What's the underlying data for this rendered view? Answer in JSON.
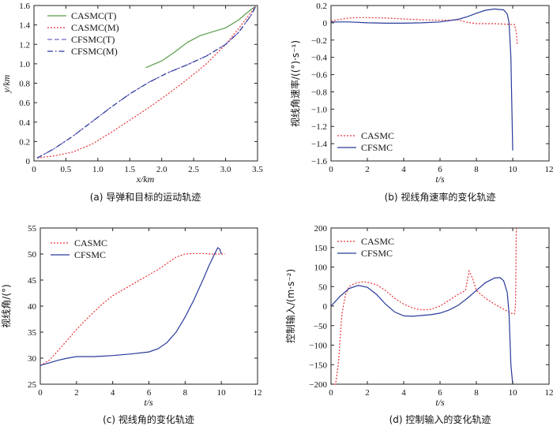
{
  "colors": {
    "green": "#5a9e4a",
    "red": "#e8333a",
    "purple": "#7c6cc8",
    "blue": "#2a3a9a"
  },
  "chart_data": [
    {
      "id": "a",
      "type": "line",
      "caption": "(a) 导弹和目标的运动轨迹",
      "xlabel": "x/km",
      "ylabel": "y/km",
      "xlim": [
        0,
        3.5
      ],
      "ylim": [
        0,
        1.6
      ],
      "xticks": [
        0,
        0.5,
        1.0,
        1.5,
        2.0,
        2.5,
        3.0,
        3.5
      ],
      "xtick_labels": [
        "0",
        "0.5",
        "1.0",
        "1.5",
        "2.0",
        "2.5",
        "3.0",
        "3.5"
      ],
      "yticks": [
        0,
        0.2,
        0.4,
        0.6,
        0.8,
        1.0,
        1.2,
        1.4,
        1.6
      ],
      "ytick_labels": [
        "0",
        "0.2",
        "0.4",
        "0.6",
        "0.8",
        "1.0",
        "1.2",
        "1.4",
        "1.6"
      ],
      "legend": "top-left",
      "series": [
        {
          "name": "CASMC(T)",
          "style": "solid",
          "color": "#5a9e4a",
          "x": [
            1.75,
            2.0,
            2.2,
            2.4,
            2.6,
            2.8,
            3.0,
            3.2,
            3.4,
            3.47
          ],
          "y": [
            0.96,
            1.03,
            1.12,
            1.22,
            1.29,
            1.33,
            1.37,
            1.45,
            1.56,
            1.59
          ]
        },
        {
          "name": "CASMC(M)",
          "style": "dotted",
          "color": "#e8333a",
          "x": [
            0.05,
            0.3,
            0.6,
            0.9,
            1.2,
            1.5,
            1.8,
            2.1,
            2.4,
            2.7,
            3.0,
            3.2,
            3.4,
            3.47
          ],
          "y": [
            0.03,
            0.05,
            0.09,
            0.17,
            0.29,
            0.42,
            0.55,
            0.69,
            0.84,
            1.0,
            1.2,
            1.36,
            1.53,
            1.59
          ]
        },
        {
          "name": "CFSMC(T)",
          "style": "dashed",
          "color": "#7c6cc8",
          "x": [
            0.05,
            0.3,
            0.6,
            0.9,
            1.2,
            1.5,
            1.8,
            2.1,
            2.4,
            2.7,
            3.0,
            3.2,
            3.4,
            3.47
          ],
          "y": [
            0.03,
            0.12,
            0.25,
            0.4,
            0.55,
            0.69,
            0.81,
            0.91,
            0.99,
            1.08,
            1.2,
            1.32,
            1.5,
            1.59
          ]
        },
        {
          "name": "CFSMC(M)",
          "style": "dashdot",
          "color": "#2a3a9a",
          "x": [
            0.05,
            0.3,
            0.6,
            0.9,
            1.2,
            1.5,
            1.8,
            2.1,
            2.4,
            2.7,
            3.0,
            3.2,
            3.4,
            3.47
          ],
          "y": [
            0.03,
            0.12,
            0.25,
            0.4,
            0.55,
            0.69,
            0.81,
            0.91,
            0.99,
            1.08,
            1.2,
            1.32,
            1.5,
            1.59
          ]
        }
      ]
    },
    {
      "id": "b",
      "type": "line",
      "caption": "(b) 视线角速率的变化轨迹",
      "xlabel": "t/s",
      "ylabel": "视线角速率/((°)·s⁻¹)",
      "xlim": [
        0,
        12
      ],
      "ylim": [
        -1.6,
        0.2
      ],
      "xticks": [
        0,
        2,
        4,
        6,
        8,
        10,
        12
      ],
      "xtick_labels": [
        "0",
        "2",
        "4",
        "6",
        "8",
        "10",
        "12"
      ],
      "yticks": [
        0.2,
        0,
        -0.2,
        -0.4,
        -0.6,
        -0.8,
        -1.0,
        -1.2,
        -1.4,
        -1.6
      ],
      "ytick_labels": [
        "0.2",
        "0",
        "−0.2",
        "−0.4",
        "−0.6",
        "−0.8",
        "−1.0",
        "−1.2",
        "−1.4",
        "−1.6"
      ],
      "legend": "bottom-left",
      "series": [
        {
          "name": "CASMC",
          "style": "dotted",
          "color": "#e8333a",
          "x": [
            0,
            0.5,
            1,
            1.5,
            2,
            3,
            4,
            5,
            6,
            6.5,
            7,
            7.5,
            8,
            9,
            10,
            10.1,
            10.2,
            10.25
          ],
          "y": [
            0.02,
            0.04,
            0.055,
            0.06,
            0.06,
            0.055,
            0.045,
            0.035,
            0.03,
            0.03,
            0.035,
            0.005,
            -0.01,
            -0.01,
            -0.02,
            -0.02,
            -0.12,
            -0.25
          ]
        },
        {
          "name": "CFSMC",
          "style": "solid",
          "color": "#2a3a9a",
          "x": [
            0,
            1,
            2,
            3,
            4,
            5,
            6,
            7,
            7.5,
            8,
            8.5,
            9,
            9.5,
            9.7,
            9.8,
            9.9,
            10.0
          ],
          "y": [
            0.01,
            0.01,
            0.0,
            -0.005,
            -0.005,
            0.0,
            0.01,
            0.04,
            0.07,
            0.11,
            0.145,
            0.16,
            0.15,
            0.1,
            0.0,
            -0.4,
            -1.48
          ]
        }
      ]
    },
    {
      "id": "c",
      "type": "line",
      "caption": "(c) 视线角的变化轨迹",
      "xlabel": "t/s",
      "ylabel": "视线角/(°)",
      "xlim": [
        0,
        12
      ],
      "ylim": [
        25,
        55
      ],
      "xticks": [
        0,
        2,
        4,
        6,
        8,
        10,
        12
      ],
      "xtick_labels": [
        "0",
        "2",
        "4",
        "6",
        "8",
        "10",
        "12"
      ],
      "yticks": [
        25,
        30,
        35,
        40,
        45,
        50,
        55
      ],
      "ytick_labels": [
        "25",
        "30",
        "35",
        "40",
        "45",
        "50",
        "55"
      ],
      "legend": "top-left",
      "series": [
        {
          "name": "CASMC",
          "style": "dotted",
          "color": "#e8333a",
          "x": [
            0,
            0.5,
            1,
            1.5,
            2,
            2.5,
            3,
            3.5,
            4,
            4.5,
            5,
            5.5,
            6,
            6.5,
            7,
            7.5,
            8,
            8.5,
            9,
            9.5,
            10,
            10.2
          ],
          "y": [
            28.6,
            29.6,
            31.5,
            33.5,
            35.5,
            37.3,
            39.0,
            40.6,
            42.0,
            43.0,
            44.0,
            45.0,
            46.0,
            47.0,
            48.2,
            49.4,
            50.0,
            50.1,
            50.1,
            50.0,
            50.0,
            50.0
          ]
        },
        {
          "name": "CFSMC",
          "style": "solid",
          "color": "#2a3a9a",
          "x": [
            0,
            0.5,
            1,
            1.5,
            2,
            3,
            4,
            5,
            6,
            6.5,
            7,
            7.5,
            8,
            8.5,
            9,
            9.3,
            9.6,
            9.8,
            9.9,
            10.0
          ],
          "y": [
            28.6,
            29.1,
            29.6,
            30.0,
            30.3,
            30.3,
            30.5,
            30.8,
            31.2,
            31.8,
            33.0,
            35.0,
            37.9,
            41.3,
            45.2,
            47.6,
            49.8,
            51.2,
            51.0,
            50.0
          ]
        }
      ]
    },
    {
      "id": "d",
      "type": "line",
      "caption": "(d) 控制输入的变化轨迹",
      "xlabel": "t/s",
      "ylabel": "控制输入/(m·s⁻²)",
      "xlim": [
        0,
        12
      ],
      "ylim": [
        -200,
        200
      ],
      "xticks": [
        0,
        2,
        4,
        6,
        8,
        10,
        12
      ],
      "xtick_labels": [
        "0",
        "2",
        "4",
        "6",
        "8",
        "10",
        "12"
      ],
      "yticks": [
        200,
        150,
        100,
        50,
        0,
        -50,
        -100,
        -150,
        -200
      ],
      "ytick_labels": [
        "200",
        "150",
        "100",
        "50",
        "0",
        "−50",
        "−100",
        "−150",
        "−200"
      ],
      "legend": "top-left",
      "series": [
        {
          "name": "CASMC",
          "style": "dotted",
          "color": "#e8333a",
          "x": [
            0,
            0.25,
            0.4,
            0.6,
            0.8,
            1.0,
            1.3,
            1.7,
            2,
            2.5,
            3,
            3.5,
            4,
            4.5,
            5,
            5.5,
            6,
            6.5,
            7,
            7.4,
            7.6,
            7.8,
            8,
            8.5,
            9,
            9.5,
            10,
            10.1,
            10.15,
            10.2
          ],
          "y": [
            -200,
            -200,
            -150,
            -20,
            30,
            50,
            58,
            62,
            61,
            55,
            40,
            20,
            5,
            -5,
            -10,
            -8,
            0,
            15,
            30,
            40,
            90,
            70,
            40,
            20,
            5,
            -8,
            -20,
            -20,
            0,
            200
          ]
        },
        {
          "name": "CFSMC",
          "style": "solid",
          "color": "#2a3a9a",
          "x": [
            0,
            0.5,
            1,
            1.5,
            2,
            2.5,
            3,
            3.5,
            4,
            4.5,
            5,
            5.5,
            6,
            6.5,
            7,
            7.5,
            8,
            8.5,
            9,
            9.3,
            9.5,
            9.7,
            9.8,
            9.9,
            10.0
          ],
          "y": [
            0,
            25,
            45,
            53,
            48,
            30,
            5,
            -15,
            -25,
            -26,
            -24,
            -22,
            -18,
            -10,
            2,
            20,
            40,
            60,
            72,
            73,
            65,
            35,
            -20,
            -150,
            -200
          ]
        }
      ]
    }
  ]
}
